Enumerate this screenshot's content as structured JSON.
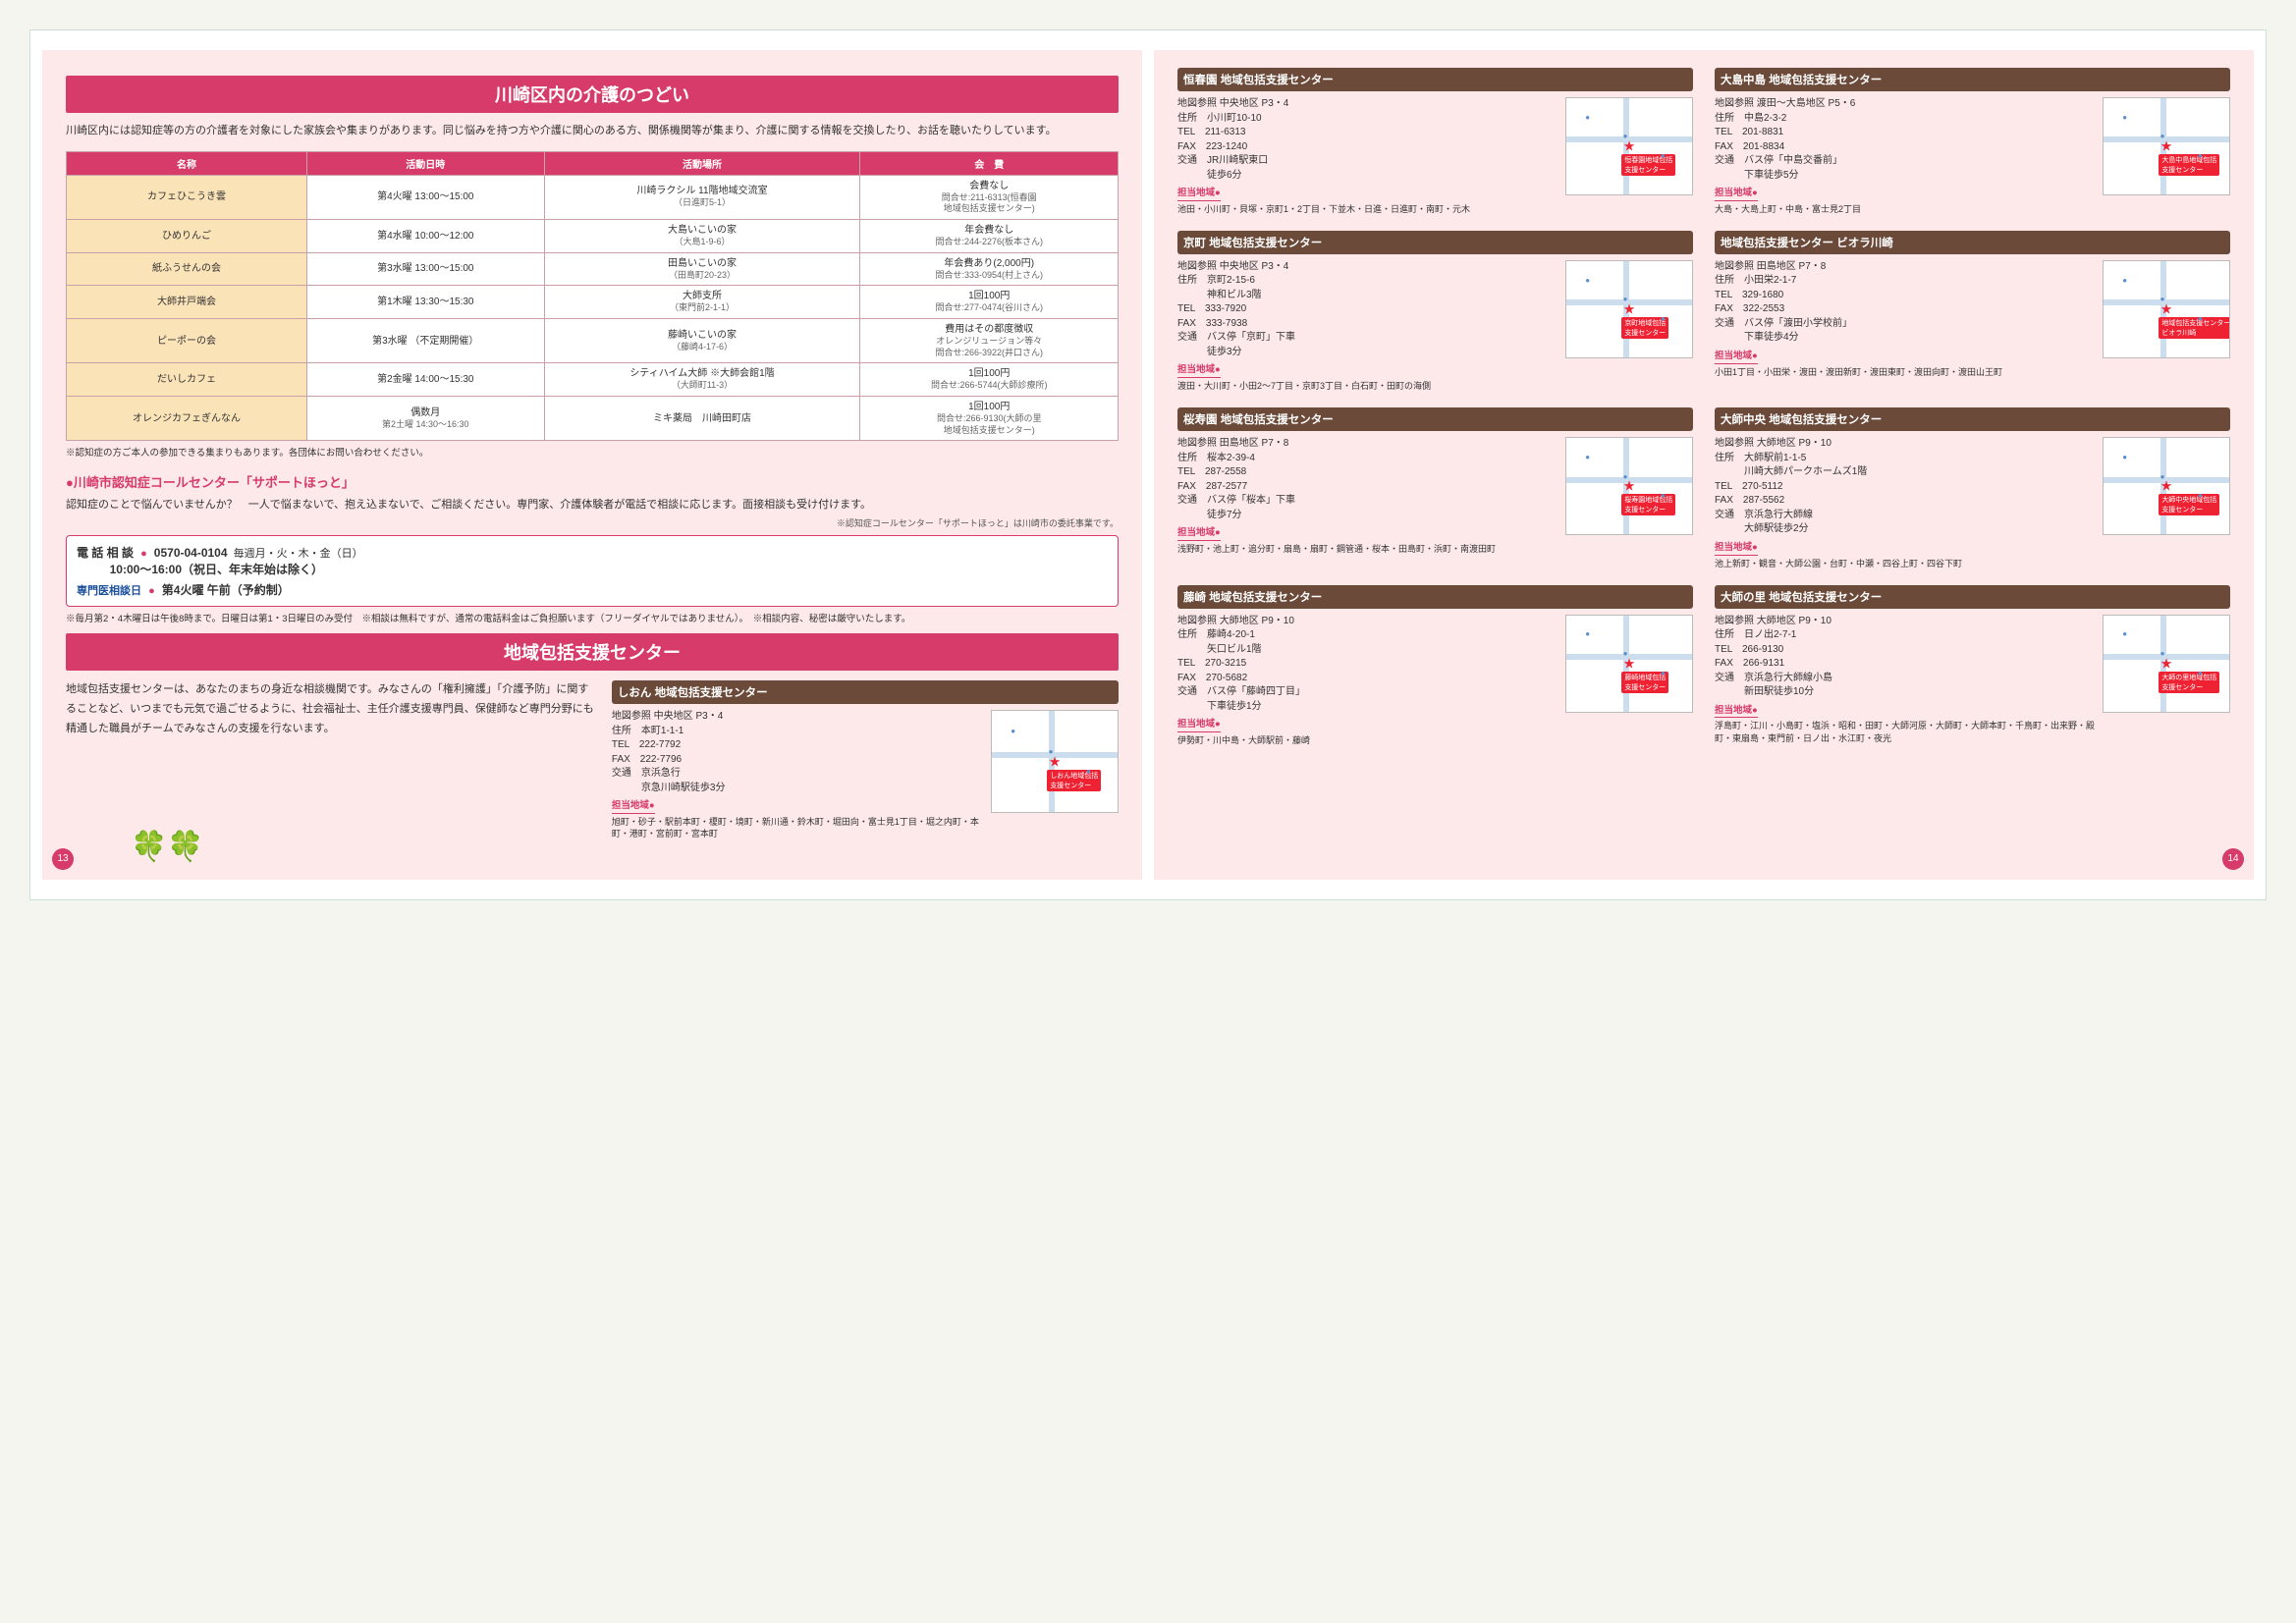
{
  "left": {
    "banner1": "川崎区内の介護のつどい",
    "intro": "川崎区内には認知症等の方の介護者を対象にした家族会や集まりがあります。同じ悩みを持つ方や介護に関心のある方、関係機関等が集まり、介護に関する情報を交換したり、お話を聴いたりしています。",
    "table": {
      "headers": [
        "名称",
        "活動日時",
        "活動場所",
        "会　費"
      ],
      "rows": [
        {
          "name": "カフェひこうき雲",
          "when": "第4火曜 13:00〜15:00",
          "where": "川崎ラクシル 11階地域交流室\n（日進町5-1）",
          "fee": "会費なし\n問合せ:211-6313(恒春園\n地域包括支援センター)"
        },
        {
          "name": "ひめりんご",
          "when": "第4水曜 10:00〜12:00",
          "where": "大島いこいの家\n（大島1-9-6）",
          "fee": "年会費なし\n問合せ:244-2276(板本さん)"
        },
        {
          "name": "紙ふうせんの会",
          "when": "第3水曜 13:00〜15:00",
          "where": "田島いこいの家\n（田島町20-23）",
          "fee": "年会費あり(2,000円)\n問合せ:333-0954(村上さん)"
        },
        {
          "name": "大師井戸端会",
          "when": "第1木曜 13:30〜15:30",
          "where": "大師支所\n（東門前2-1-1）",
          "fee": "1回100円\n問合せ:277-0474(谷川さん)"
        },
        {
          "name": "ピーポーの会",
          "when": "第3水曜 （不定期開催）",
          "where": "藤崎いこいの家\n（藤崎4-17-6）",
          "fee": "費用はその都度徴収\nオレンジリュージョン等々\n問合せ:266-3922(井口さん)"
        },
        {
          "name": "だいしカフェ",
          "when": "第2金曜 14:00〜15:30",
          "where": "シティハイム大師 ※大師会館1階\n（大師町11-3）",
          "fee": "1回100円\n問合せ:266-5744(大師診療所)"
        },
        {
          "name": "オレンジカフェぎんなん",
          "when": "偶数月\n第2土曜 14:30〜16:30",
          "where": "ミキ薬局　川崎田町店",
          "fee": "1回100円\n問合せ:266-9130(大師の里\n地域包括支援センター)"
        }
      ]
    },
    "tablenote": "※認知症の方ご本人の参加できる集まりもあります。各団体にお問い合わせください。",
    "callcenter": {
      "heading": "●川崎市認知症コールセンター「サポートほっと」",
      "body": "認知症のことで悩んでいませんか？　一人で悩まないで、抱え込まないで、ご相談ください。専門家、介護体験者が電話で相談に応じます。面接相談も受け付けます。",
      "rightnote": "※認知症コールセンター「サポートほっと」は川崎市の委託事業です。",
      "line1a": "電 話 相 談",
      "line1b": "0570-04-0104",
      "line1c": "毎週月・火・木・金（日）",
      "line1d": "10:00〜16:00（祝日、年末年始は除く）",
      "line2a": "専門医相談日",
      "line2b": "第4火曜 午前（予約制）",
      "note2": "※毎月第2・4木曜日は午後8時まで。日曜日は第1・3日曜日のみ受付　※相談は無料ですが、通常の電話料金はご負担願います（フリーダイヤルではありません）。　※相談内容、秘密は厳守いたします。"
    },
    "banner2": "地域包括支援センター",
    "lowerLeft": "地域包括支援センターは、あなたのまちの身近な相談機関です。みなさんの「権利擁護」「介護予防」に関することなど、いつまでも元気で過ごせるように、社会福祉士、主任介護支援専門員、保健師など専門分野にも精通した職員がチームでみなさんの支援を行ないます。",
    "shion": {
      "title": "しおん 地域包括支援センター",
      "mapref": "地図参照 中央地区 P3・4",
      "addr": "住所　本町1-1-1",
      "tel": "TEL　222-7792",
      "fax": "FAX　222-7796",
      "access": "交通　京浜急行\n　　　京急川崎駅徒歩3分",
      "arealabel": "担当地域●",
      "area": "旭町・砂子・駅前本町・榎町・境町・新川通・鈴木町・堀田向・富士見1丁目・堀之内町・本町・港町・宮前町・宮本町",
      "pin": "しおん地域包括\n支援センター"
    },
    "pageno": "13"
  },
  "centers": [
    {
      "title": "恒春園 地域包括支援センター",
      "mapref": "地図参照 中央地区 P3・4",
      "addr": "住所　小川町10-10",
      "tel": "TEL　211-6313",
      "fax": "FAX　223-1240",
      "access": "交通　JR川崎駅東口\n　　　徒歩6分",
      "arealabel": "担当地域●",
      "area": "池田・小川町・貝塚・京町1・2丁目・下並木・日進・日進町・南町・元木",
      "pin": "恒春園地域包括\n支援センター"
    },
    {
      "title": "大島中島 地域包括支援センター",
      "mapref": "地図参照 渡田〜大島地区 P5・6",
      "addr": "住所　中島2-3-2",
      "tel": "TEL　201-8831",
      "fax": "FAX　201-8834",
      "access": "交通　バス停「中島交番前」\n　　　下車徒歩5分",
      "arealabel": "担当地域●",
      "area": "大島・大島上町・中島・富士見2丁目",
      "pin": "大島中島地域包括\n支援センター"
    },
    {
      "title": "京町 地域包括支援センター",
      "mapref": "地図参照 中央地区 P3・4",
      "addr": "住所　京町2-15-6\n　　　神和ビル3階",
      "tel": "TEL　333-7920",
      "fax": "FAX　333-7938",
      "access": "交通　バス停「京町」下車\n　　　徒歩3分",
      "arealabel": "担当地域●",
      "area": "渡田・大川町・小田2〜7丁目・京町3丁目・白石町・田町の海側",
      "pin": "京町地域包括\n支援センター"
    },
    {
      "title": "地域包括支援センター ビオラ川崎",
      "mapref": "地図参照 田島地区 P7・8",
      "addr": "住所　小田栄2-1-7",
      "tel": "TEL　329-1680",
      "fax": "FAX　322-2553",
      "access": "交通　バス停「渡田小学校前」\n　　　下車徒歩4分",
      "arealabel": "担当地域●",
      "area": "小田1丁目・小田栄・渡田・渡田新町・渡田東町・渡田向町・渡田山王町",
      "pin": "地域包括支援センター\nビオラ川崎"
    },
    {
      "title": "桜寿園 地域包括支援センター",
      "mapref": "地図参照 田島地区 P7・8",
      "addr": "住所　桜本2-39-4",
      "tel": "TEL　287-2558",
      "fax": "FAX　287-2577",
      "access": "交通　バス停「桜本」下車\n　　　徒歩7分",
      "arealabel": "担当地域●",
      "area": "浅野町・池上町・追分町・扇島・扇町・鋼管通・桜本・田島町・浜町・南渡田町",
      "pin": "桜寿園地域包括\n支援センター"
    },
    {
      "title": "大師中央 地域包括支援センター",
      "mapref": "地図参照 大師地区 P9・10",
      "addr": "住所　大師駅前1-1-5\n　　　川崎大師パークホームズ1階",
      "tel": "TEL　270-5112",
      "fax": "FAX　287-5562",
      "access": "交通　京浜急行大師線\n　　　大師駅徒歩2分",
      "arealabel": "担当地域●",
      "area": "池上新町・観音・大師公園・台町・中瀬・四谷上町・四谷下町",
      "pin": "大師中央地域包括\n支援センター"
    },
    {
      "title": "藤崎 地域包括支援センター",
      "mapref": "地図参照 大師地区 P9・10",
      "addr": "住所　藤崎4-20-1\n　　　矢口ビル1階",
      "tel": "TEL　270-3215",
      "fax": "FAX　270-5682",
      "access": "交通　バス停「藤崎四丁目」\n　　　下車徒歩1分",
      "arealabel": "担当地域●",
      "area": "伊勢町・川中島・大師駅前・藤崎",
      "pin": "藤崎地域包括\n支援センター"
    },
    {
      "title": "大師の里 地域包括支援センター",
      "mapref": "地図参照 大師地区 P9・10",
      "addr": "住所　日ノ出2-7-1",
      "tel": "TEL　266-9130",
      "fax": "FAX　266-9131",
      "access": "交通　京浜急行大師線小島\n　　　新田駅徒歩10分",
      "arealabel": "担当地域●",
      "area": "浮島町・江川・小島町・塩浜・昭和・田町・大師河原・大師町・大師本町・千鳥町・出来野・殿町・東扇島・東門前・日ノ出・水江町・夜光",
      "pin": "大師の里地域包括\n支援センター"
    }
  ],
  "right": {
    "pageno": "14"
  }
}
